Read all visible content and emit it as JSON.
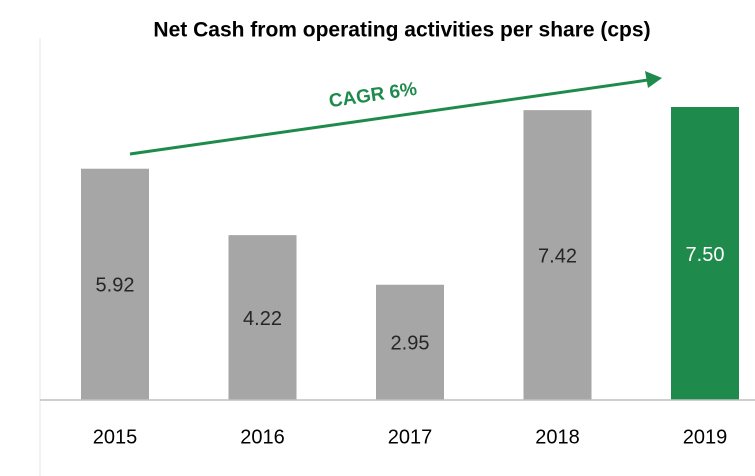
{
  "chart_data": {
    "type": "bar",
    "title": "Net Cash from operating activities per share (cps)",
    "annotation": "CAGR 6%",
    "categories": [
      "2015",
      "2016",
      "2017",
      "2018",
      "2019"
    ],
    "values": [
      5.92,
      4.22,
      2.95,
      7.42,
      7.5
    ],
    "value_labels": [
      "5.92",
      "4.22",
      "2.95",
      "7.42",
      "7.50"
    ],
    "colors": [
      "#a6a6a6",
      "#a6a6a6",
      "#a6a6a6",
      "#a6a6a6",
      "#1e8b4c"
    ],
    "label_colors": [
      "#262626",
      "#262626",
      "#262626",
      "#262626",
      "#ffffff"
    ],
    "annotation_color": "#1e8b4c"
  }
}
